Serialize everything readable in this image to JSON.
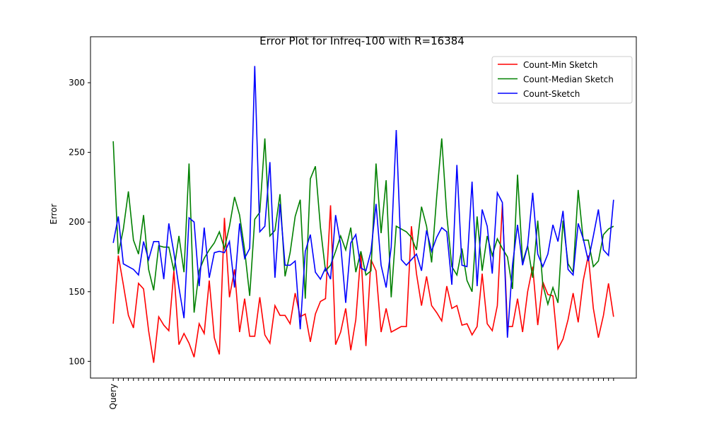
{
  "chart_data": {
    "type": "line",
    "title": "Error Plot for Infreq-100 with R=16384",
    "y_label": "Error",
    "categories": [
      "Query",
      null,
      null,
      null,
      null,
      null,
      null,
      null,
      null,
      null,
      null,
      null,
      null,
      null,
      null,
      null,
      null,
      null,
      null,
      null,
      null,
      null,
      null,
      null,
      null,
      null,
      null,
      null,
      null,
      null,
      null,
      null,
      null,
      null,
      null,
      null,
      null,
      null,
      null,
      null,
      null,
      null,
      null,
      null,
      null,
      null,
      null,
      null,
      null,
      null,
      null,
      null,
      null,
      null,
      null,
      null,
      null,
      null,
      null,
      null,
      null,
      null,
      null,
      null,
      null,
      null,
      null,
      null,
      null,
      null,
      null,
      null,
      null,
      null,
      null,
      null,
      null,
      null,
      null,
      null,
      null,
      null,
      null,
      null,
      null,
      null,
      null,
      null,
      null,
      null,
      null,
      null,
      null,
      null,
      null,
      null,
      null,
      null,
      null,
      null
    ],
    "series": [
      {
        "name": "Count-Min Sketch",
        "color": "#ff0000",
        "values": [
          127,
          176,
          155,
          133,
          124,
          156,
          152,
          122,
          99,
          132,
          126,
          122,
          165,
          112,
          120,
          113,
          103,
          127,
          120,
          158,
          117,
          105,
          203,
          146,
          166,
          121,
          145,
          118,
          118,
          146,
          119,
          113,
          140,
          133,
          133,
          127,
          149,
          132,
          134,
          114,
          134,
          143,
          145,
          212,
          112,
          121,
          138,
          108,
          130,
          178,
          111,
          173,
          165,
          121,
          138,
          121,
          123,
          125,
          125,
          197,
          163,
          140,
          161,
          140,
          135,
          129,
          154,
          138,
          140,
          126,
          127,
          119,
          125,
          163,
          127,
          122,
          140,
          213,
          125,
          125,
          145,
          121,
          150,
          168,
          126,
          157,
          148,
          147,
          109,
          116,
          130,
          149,
          128,
          158,
          176,
          138,
          117,
          133,
          156,
          132
        ]
      },
      {
        "name": "Count-Median Sketch",
        "color": "#008000",
        "values": [
          258,
          177,
          195,
          222,
          187,
          177,
          205,
          166,
          151,
          183,
          182,
          182,
          165,
          190,
          164,
          242,
          135,
          165,
          174,
          180,
          185,
          193,
          181,
          197,
          218,
          205,
          180,
          147,
          202,
          207,
          260,
          190,
          194,
          220,
          161,
          178,
          204,
          216,
          145,
          231,
          240,
          196,
          165,
          169,
          179,
          190,
          180,
          196,
          164,
          179,
          162,
          165,
          242,
          192,
          230,
          146,
          197,
          195,
          193,
          189,
          180,
          211,
          197,
          171,
          218,
          260,
          205,
          168,
          162,
          181,
          158,
          150,
          204,
          165,
          190,
          176,
          188,
          181,
          175,
          152,
          234,
          171,
          183,
          160,
          201,
          155,
          141,
          153,
          142,
          201,
          170,
          164,
          223,
          187,
          187,
          168,
          172,
          191,
          195,
          197
        ]
      },
      {
        "name": "Count-Sketch",
        "color": "#0000ff",
        "values": [
          185,
          204,
          170,
          168,
          166,
          162,
          186,
          173,
          186,
          186,
          159,
          199,
          178,
          153,
          131,
          203,
          200,
          154,
          196,
          160,
          178,
          179,
          178,
          186,
          153,
          199,
          174,
          181,
          312,
          193,
          197,
          243,
          160,
          213,
          169,
          169,
          172,
          123,
          179,
          191,
          164,
          159,
          167,
          159,
          205,
          184,
          142,
          185,
          191,
          167,
          165,
          179,
          213,
          169,
          153,
          182,
          266,
          173,
          169,
          173,
          177,
          165,
          194,
          179,
          189,
          196,
          193,
          155,
          241,
          169,
          168,
          229,
          154,
          209,
          197,
          163,
          221,
          214,
          117,
          169,
          198,
          169,
          183,
          221,
          177,
          168,
          177,
          198,
          186,
          208,
          166,
          162,
          199,
          188,
          172,
          190,
          209,
          180,
          176,
          216
        ]
      }
    ],
    "ylim": [
      88,
      333
    ],
    "yticks": [
      100,
      150,
      200,
      250,
      300
    ],
    "legend": "upper right"
  }
}
